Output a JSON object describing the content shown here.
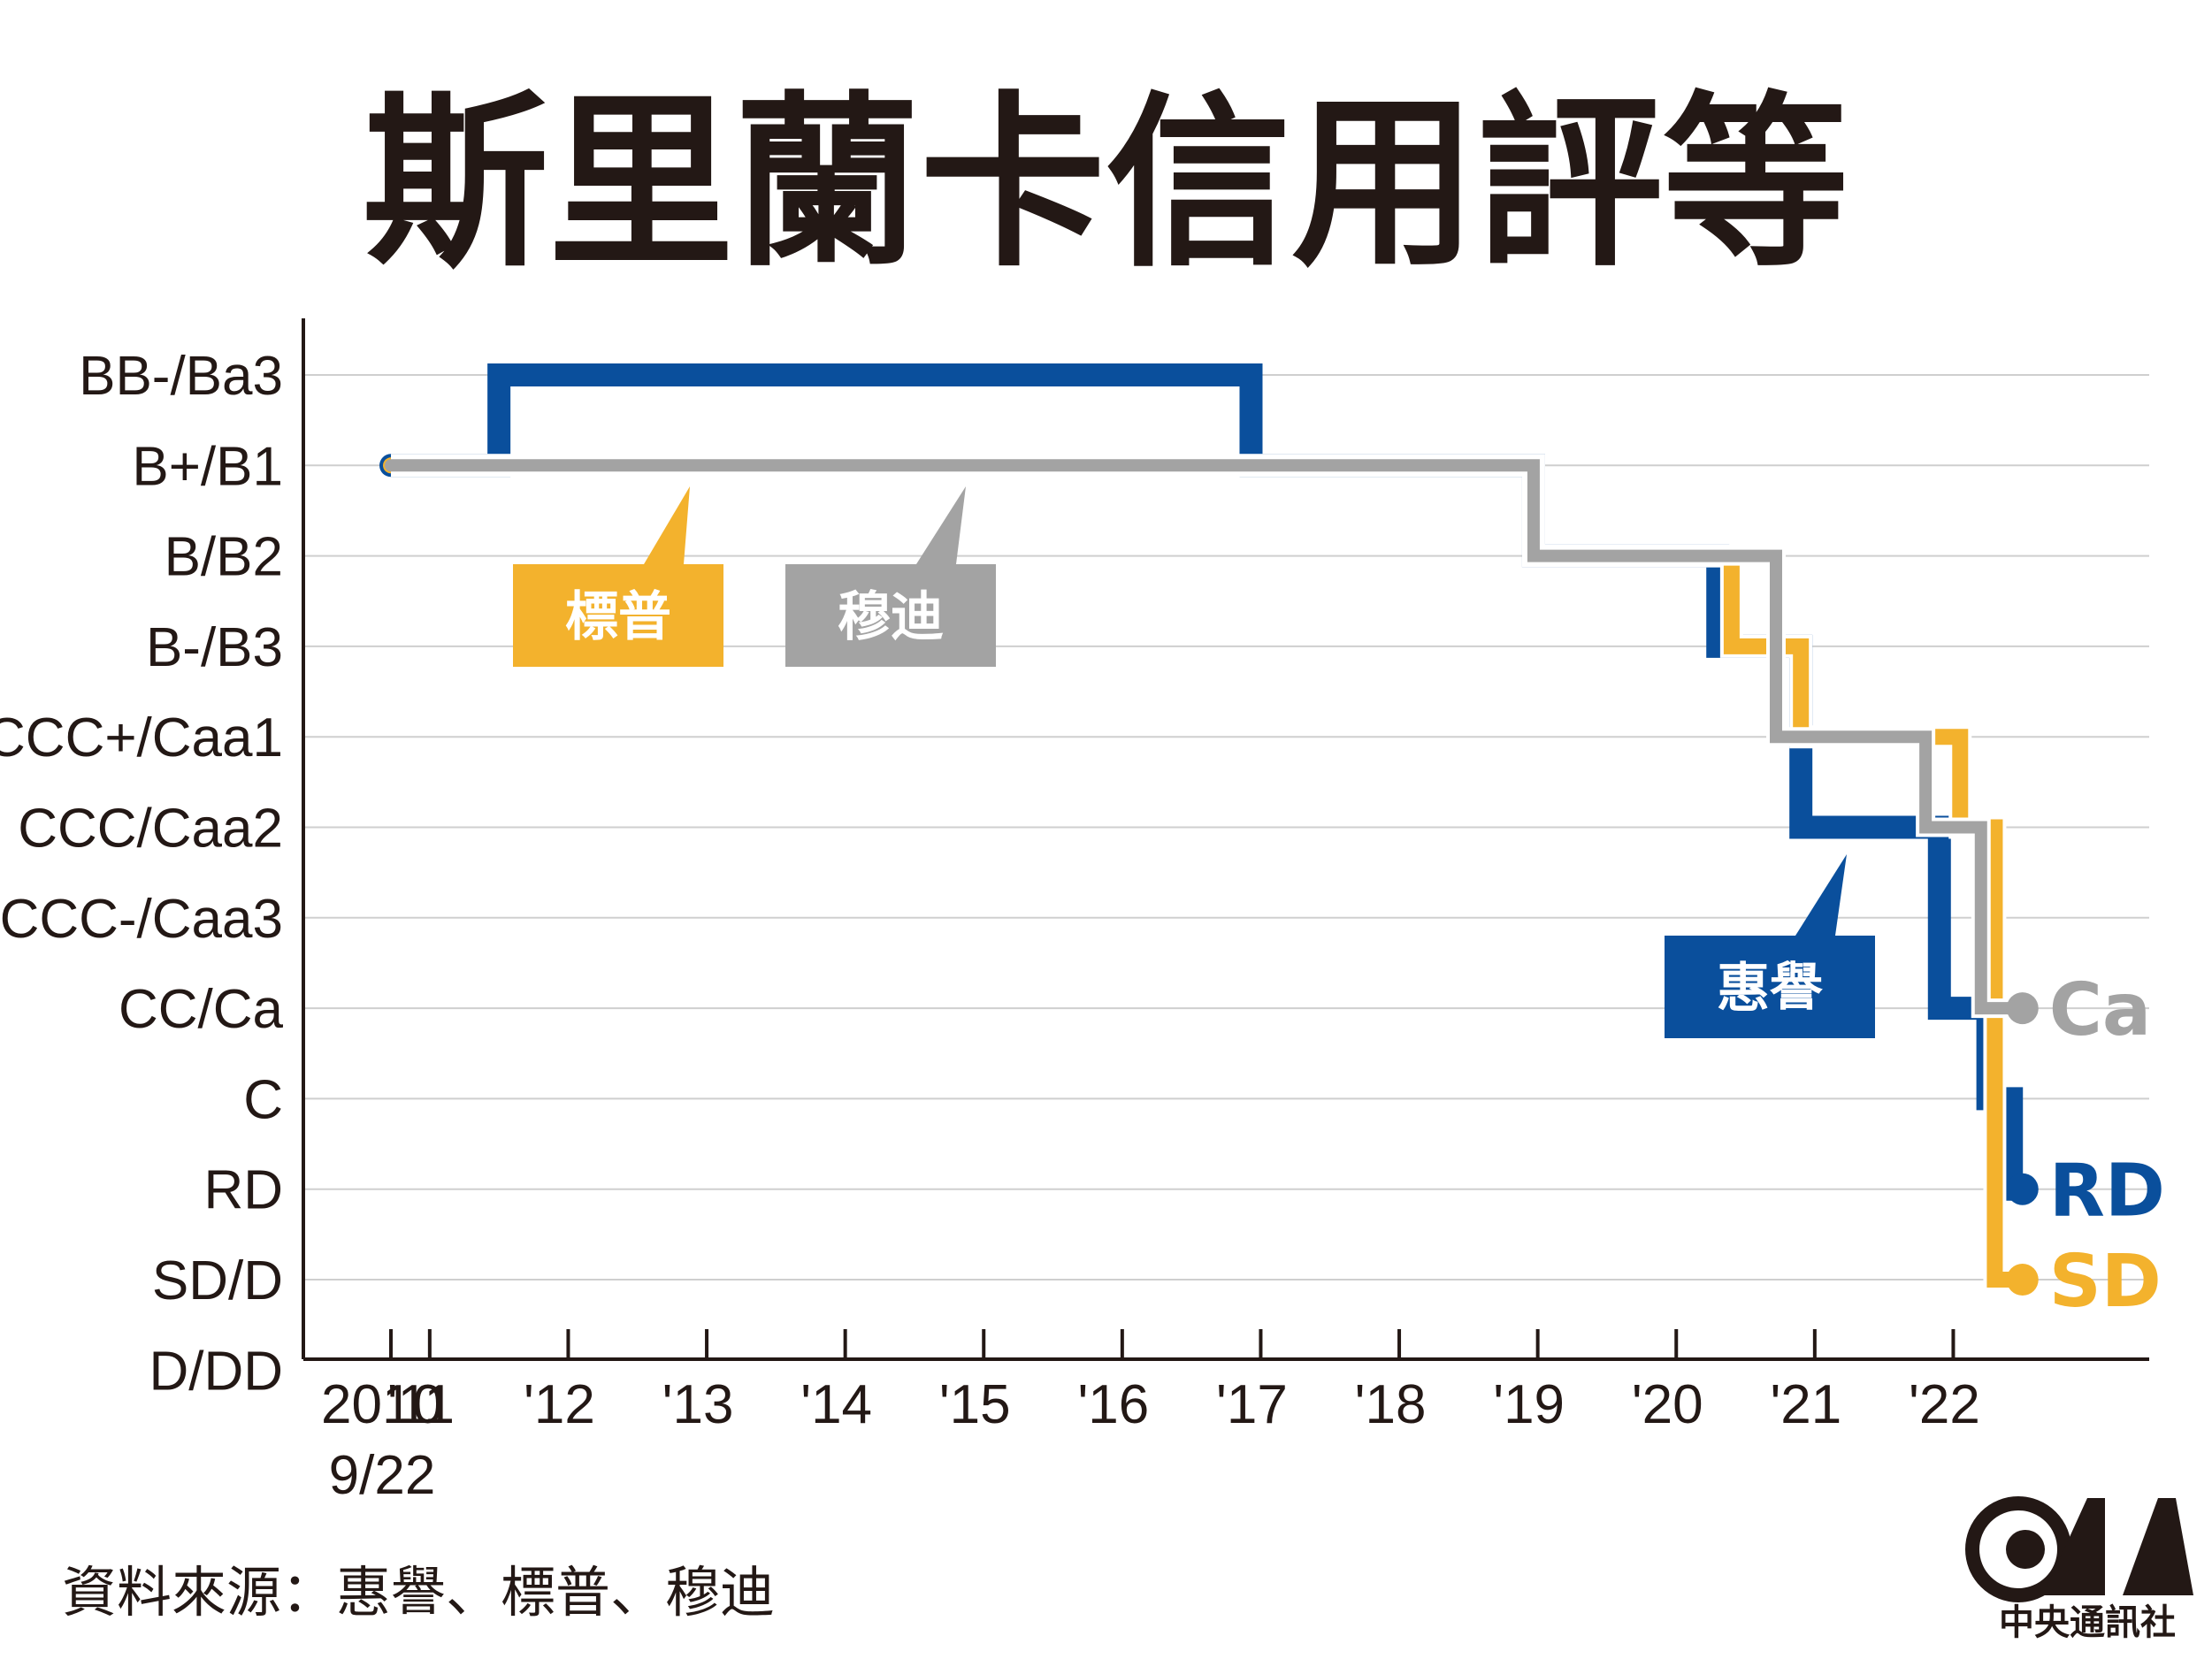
{
  "title": "斯里蘭卡信用評等",
  "source": "資料來源：惠譽、標普、穆迪",
  "logo": {
    "text": "中央通訊社",
    "icon": "cna-logo-icon"
  },
  "colors": {
    "fitch": "#0a4f9c",
    "sp": "#f3b22d",
    "moodys": "#a3a3a3",
    "text": "#231815",
    "grid": "#cfcfcf"
  },
  "chart_data": {
    "type": "line",
    "step": true,
    "title": "斯里蘭卡信用評等",
    "y_categories": [
      "D/DD",
      "SD/D",
      "RD",
      "C",
      "CC/Ca",
      "CCC-/Caa3",
      "CCC/Caa2",
      "CCC+/Caa1",
      "B-/B3",
      "B/B2",
      "B+/B1",
      "BB-/Ba3"
    ],
    "x_ticks": [
      {
        "x": 2010.72,
        "label": "2010",
        "label2": "9/22"
      },
      {
        "x": 2011,
        "label": "'11"
      },
      {
        "x": 2012,
        "label": "'12"
      },
      {
        "x": 2013,
        "label": "'13"
      },
      {
        "x": 2014,
        "label": "'14"
      },
      {
        "x": 2015,
        "label": "'15"
      },
      {
        "x": 2016,
        "label": "'16"
      },
      {
        "x": 2017,
        "label": "'17"
      },
      {
        "x": 2018,
        "label": "'18"
      },
      {
        "x": 2019,
        "label": "'19"
      },
      {
        "x": 2020,
        "label": "'20"
      },
      {
        "x": 2021,
        "label": "'21"
      },
      {
        "x": 2022,
        "label": "'22"
      }
    ],
    "xlim": [
      2010.1,
      2023.3
    ],
    "grid": true,
    "series": [
      {
        "name": "惠譽",
        "key": "fitch",
        "end_label": "RD",
        "points": [
          [
            2010.72,
            "B+/B1"
          ],
          [
            2011.5,
            "BB-/Ba3"
          ],
          [
            2016.93,
            "B+/B1"
          ],
          [
            2018.97,
            "B/B2"
          ],
          [
            2020.3,
            "B-/B3"
          ],
          [
            2020.9,
            "CCC/Caa2"
          ],
          [
            2021.9,
            "CC/Ca"
          ],
          [
            2022.25,
            "C"
          ],
          [
            2022.42,
            "RD"
          ],
          [
            2022.5,
            "RD"
          ]
        ],
        "box": "above"
      },
      {
        "name": "標普",
        "key": "sp",
        "end_label": "SD",
        "points": [
          [
            2010.72,
            "B+/B1"
          ],
          [
            2018.97,
            "B/B2"
          ],
          [
            2020.4,
            "B-/B3"
          ],
          [
            2020.9,
            "CCC+/Caa1"
          ],
          [
            2022.05,
            "CCC/Caa2"
          ],
          [
            2022.3,
            "SD/D"
          ],
          [
            2022.5,
            "SD/D"
          ]
        ],
        "box": "left"
      },
      {
        "name": "穆迪",
        "key": "moodys",
        "end_label": "Ca",
        "points": [
          [
            2010.72,
            "B+/B1"
          ],
          [
            2018.97,
            "B/B2"
          ],
          [
            2020.72,
            "CCC+/Caa1"
          ],
          [
            2021.8,
            "CCC/Caa2"
          ],
          [
            2022.2,
            "CC/Ca"
          ],
          [
            2022.5,
            "CC/Ca"
          ]
        ],
        "box": "mid"
      }
    ]
  }
}
